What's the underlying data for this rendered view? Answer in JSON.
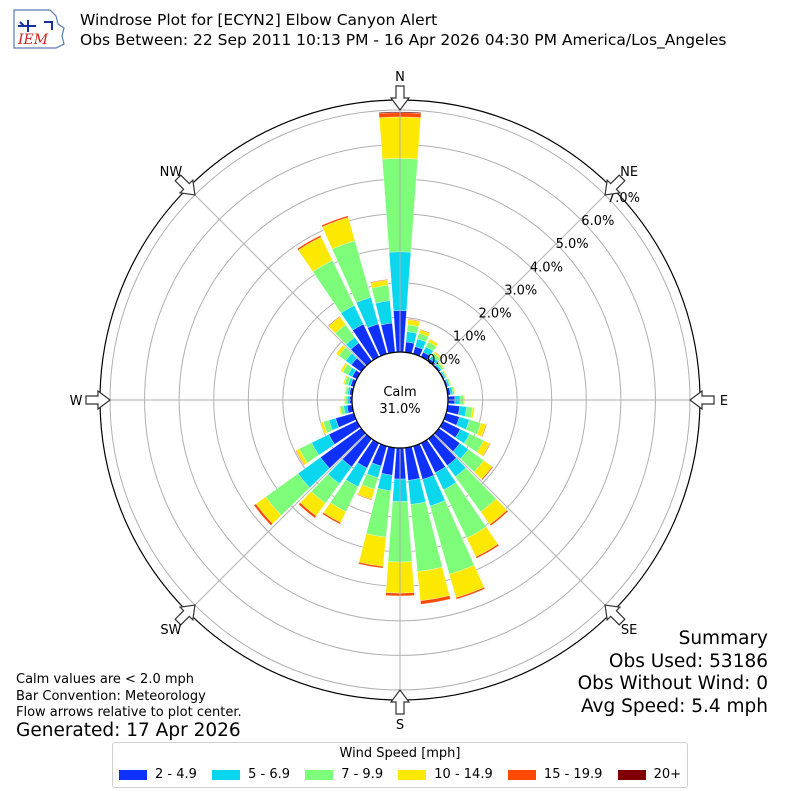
{
  "header": {
    "logo_text": "IEM",
    "title_line1": "Windrose Plot for [ECYN2] Elbow Canyon Alert",
    "title_line2": "Obs Between: 22 Sep 2011 10:13 PM - 16 Apr 2026 04:30 PM America/Los_Angeles"
  },
  "summary": {
    "heading": "Summary",
    "obs_used": "Obs Used: 53186",
    "obs_without_wind": "Obs Without Wind: 0",
    "avg_speed": "Avg Speed: 5.4 mph"
  },
  "notes": {
    "calm": "Calm values are < 2.0 mph",
    "convention": "Bar Convention: Meteorology",
    "flow": "Flow arrows relative to plot center.",
    "generated": "Generated: 17 Apr 2026"
  },
  "chart_data": {
    "type": "windrose",
    "center_label": "Calm",
    "calm_percent_label": "31.0%",
    "rlim": [
      0,
      7.0
    ],
    "radial_ticks": [
      0,
      1,
      2,
      3,
      4,
      5,
      6,
      7
    ],
    "radial_tick_labels": [
      "0.0%",
      "1.0%",
      "2.0%",
      "3.0%",
      "4.0%",
      "5.0%",
      "6.0%",
      "7.0%"
    ],
    "direction_labels": [
      {
        "label": "N",
        "angle": 0
      },
      {
        "label": "NE",
        "angle": 45
      },
      {
        "label": "E",
        "angle": 90
      },
      {
        "label": "SE",
        "angle": 135
      },
      {
        "label": "S",
        "angle": 180
      },
      {
        "label": "SW",
        "angle": 225
      },
      {
        "label": "W",
        "angle": 270
      },
      {
        "label": "NW",
        "angle": 315
      }
    ],
    "legend_title": "Wind Speed [mph]",
    "bins": [
      {
        "label": "2 - 4.9",
        "color": "#0f31ff"
      },
      {
        "label": "5 - 6.9",
        "color": "#0ad6ee"
      },
      {
        "label": "7 - 9.9",
        "color": "#7dfd7a"
      },
      {
        "label": "10 - 14.9",
        "color": "#fde802"
      },
      {
        "label": "15 - 19.9",
        "color": "#fd4a02"
      },
      {
        "label": "20+",
        "color": "#800000"
      }
    ],
    "directions": [
      0,
      10,
      20,
      30,
      40,
      50,
      60,
      70,
      80,
      90,
      100,
      110,
      120,
      130,
      140,
      150,
      160,
      170,
      180,
      190,
      200,
      210,
      220,
      230,
      240,
      250,
      260,
      270,
      280,
      290,
      300,
      310,
      320,
      330,
      340,
      350
    ],
    "cumulative": [
      [
        1.2,
        2.9,
        5.6,
        6.8,
        6.92,
        6.95
      ],
      [
        0.3,
        0.6,
        0.8,
        0.95,
        0.97,
        0.97
      ],
      [
        0.22,
        0.45,
        0.62,
        0.72,
        0.74,
        0.74
      ],
      [
        0.15,
        0.32,
        0.48,
        0.57,
        0.58,
        0.58
      ],
      [
        0.08,
        0.18,
        0.28,
        0.33,
        0.34,
        0.34
      ],
      [
        0.05,
        0.1,
        0.16,
        0.19,
        0.19,
        0.19
      ],
      [
        0.04,
        0.08,
        0.12,
        0.14,
        0.14,
        0.14
      ],
      [
        0.05,
        0.1,
        0.14,
        0.16,
        0.16,
        0.16
      ],
      [
        0.08,
        0.15,
        0.2,
        0.22,
        0.22,
        0.22
      ],
      [
        0.2,
        0.35,
        0.45,
        0.48,
        0.48,
        0.48
      ],
      [
        0.35,
        0.55,
        0.72,
        0.78,
        0.78,
        0.78
      ],
      [
        0.4,
        0.7,
        1.05,
        1.2,
        1.22,
        1.22
      ],
      [
        0.55,
        0.85,
        1.3,
        1.5,
        1.52,
        1.52
      ],
      [
        0.75,
        1.05,
        1.6,
        1.9,
        1.93,
        1.93
      ],
      [
        0.95,
        1.35,
        2.6,
        3.05,
        3.1,
        3.1
      ],
      [
        0.95,
        1.5,
        3.05,
        3.65,
        3.7,
        3.7
      ],
      [
        1.0,
        1.8,
        3.85,
        4.55,
        4.6,
        4.6
      ],
      [
        0.95,
        1.65,
        3.6,
        4.45,
        4.55,
        4.55
      ],
      [
        0.9,
        1.55,
        3.3,
        4.2,
        4.28,
        4.28
      ],
      [
        0.8,
        1.25,
        2.6,
        3.45,
        3.5,
        3.5
      ],
      [
        0.6,
        0.95,
        1.3,
        1.6,
        1.62,
        1.62
      ],
      [
        0.8,
        1.4,
        2.2,
        2.55,
        2.6,
        2.6
      ],
      [
        1.0,
        1.6,
        2.3,
        2.75,
        2.82,
        2.82
      ],
      [
        1.45,
        2.25,
        3.4,
        3.75,
        3.82,
        3.82
      ],
      [
        0.9,
        1.45,
        1.85,
        1.95,
        1.97,
        1.97
      ],
      [
        0.55,
        0.75,
        0.92,
        1.0,
        1.0,
        1.0
      ],
      [
        0.15,
        0.25,
        0.35,
        0.38,
        0.38,
        0.38
      ],
      [
        0.08,
        0.14,
        0.2,
        0.22,
        0.22,
        0.22
      ],
      [
        0.08,
        0.14,
        0.2,
        0.22,
        0.22,
        0.22
      ],
      [
        0.1,
        0.18,
        0.28,
        0.32,
        0.32,
        0.32
      ],
      [
        0.15,
        0.28,
        0.45,
        0.52,
        0.52,
        0.52
      ],
      [
        0.35,
        0.55,
        0.8,
        0.9,
        0.9,
        0.9
      ],
      [
        0.65,
        0.85,
        1.3,
        1.58,
        1.6,
        1.6
      ],
      [
        1.05,
        1.65,
        3.1,
        3.85,
        3.9,
        3.9
      ],
      [
        0.9,
        1.7,
        3.4,
        4.1,
        4.15,
        4.15
      ],
      [
        0.85,
        1.5,
        1.95,
        2.1,
        2.12,
        2.12
      ]
    ]
  }
}
